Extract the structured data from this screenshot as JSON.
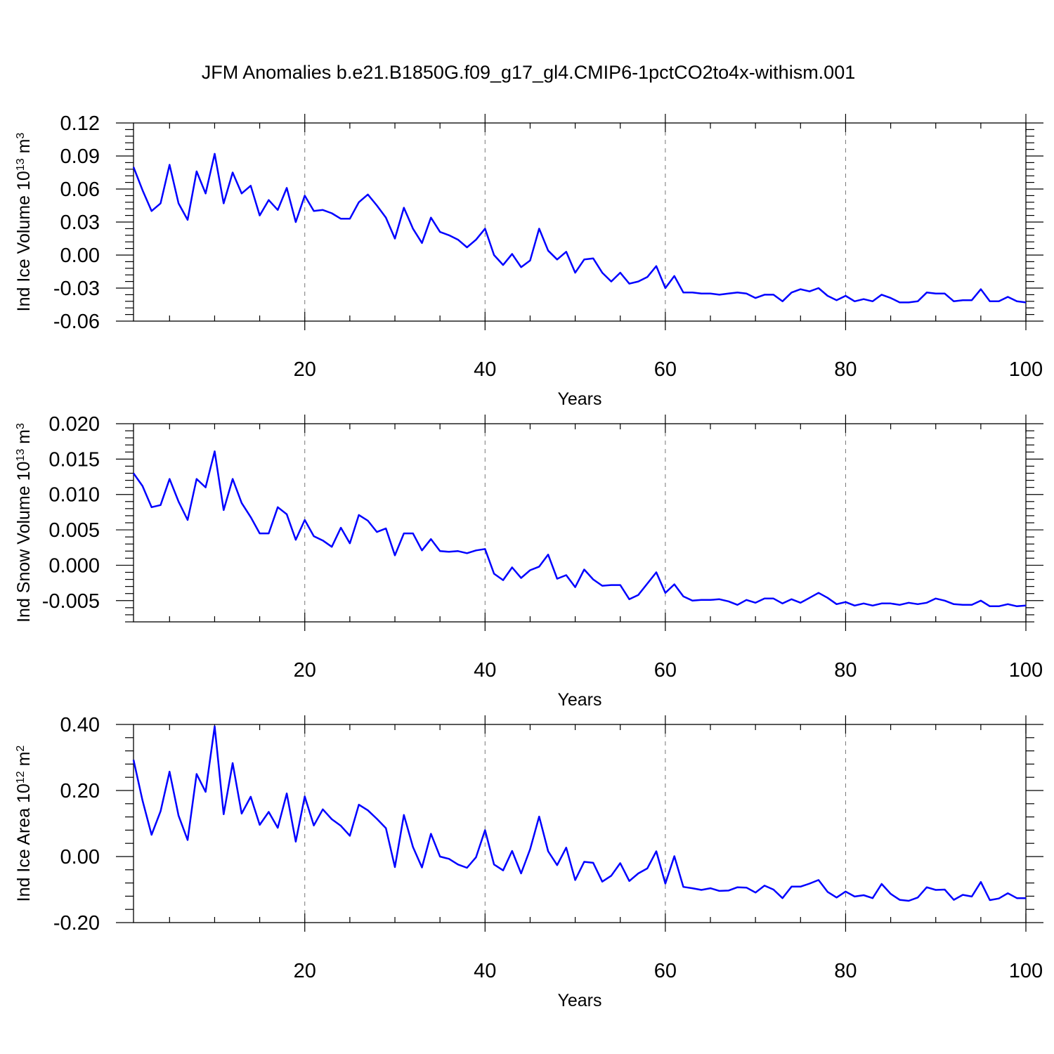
{
  "title": "JFM Anomalies b.e21.B1850G.f09_g17_gl4.CMIP6-1pctCO2to4x-withism.001",
  "line_color": "#0000ff",
  "chart_data": [
    {
      "type": "line",
      "name": "ice-volume",
      "ylabel": "Ind Ice Volume 10",
      "ylabel_exp": "13",
      "ylabel_unit": " m",
      "ylabel_unit_exp": "3",
      "xlabel": "Years",
      "xlim": [
        1,
        100
      ],
      "ylim": [
        -0.06,
        0.12
      ],
      "yticks": [
        -0.06,
        -0.03,
        0.0,
        0.03,
        0.06,
        0.09,
        0.12
      ],
      "ytick_labels": [
        "-0.06",
        "-0.03",
        "0.00",
        "0.03",
        "0.06",
        "0.09",
        "0.12"
      ],
      "xticks": [
        20,
        40,
        60,
        80,
        100
      ],
      "xtick_labels": [
        "20",
        "40",
        "60",
        "80",
        "100"
      ],
      "values": [
        0.08,
        0.059,
        0.04,
        0.047,
        0.082,
        0.047,
        0.032,
        0.076,
        0.056,
        0.092,
        0.047,
        0.075,
        0.056,
        0.063,
        0.036,
        0.05,
        0.041,
        0.061,
        0.03,
        0.054,
        0.04,
        0.041,
        0.038,
        0.033,
        0.033,
        0.048,
        0.055,
        0.045,
        0.034,
        0.015,
        0.043,
        0.024,
        0.011,
        0.034,
        0.021,
        0.018,
        0.014,
        0.007,
        0.014,
        0.024,
        0.0,
        -0.009,
        0.001,
        -0.011,
        -0.005,
        0.024,
        0.004,
        -0.004,
        0.003,
        -0.016,
        -0.004,
        -0.003,
        -0.016,
        -0.024,
        -0.016,
        -0.026,
        -0.024,
        -0.02,
        -0.01,
        -0.03,
        -0.019,
        -0.034,
        -0.034,
        -0.035,
        -0.035,
        -0.036,
        -0.035,
        -0.034,
        -0.035,
        -0.039,
        -0.036,
        -0.036,
        -0.042,
        -0.034,
        -0.031,
        -0.033,
        -0.03,
        -0.037,
        -0.041,
        -0.037,
        -0.042,
        -0.04,
        -0.042,
        -0.036,
        -0.039,
        -0.043,
        -0.043,
        -0.042,
        -0.034,
        -0.035,
        -0.035,
        -0.042,
        -0.041,
        -0.041,
        -0.031,
        -0.042,
        -0.042,
        -0.038,
        -0.042,
        -0.043
      ]
    },
    {
      "type": "line",
      "name": "snow-volume",
      "ylabel": "Ind Snow Volume 10",
      "ylabel_exp": "13",
      "ylabel_unit": " m",
      "ylabel_unit_exp": "3",
      "xlabel": "Years",
      "xlim": [
        1,
        100
      ],
      "ylim": [
        -0.008,
        0.02
      ],
      "yticks": [
        -0.005,
        0.0,
        0.005,
        0.01,
        0.015,
        0.02
      ],
      "ytick_labels": [
        "-0.005",
        "0.000",
        "0.005",
        "0.010",
        "0.015",
        "0.020"
      ],
      "xticks": [
        20,
        40,
        60,
        80,
        100
      ],
      "xtick_labels": [
        "20",
        "40",
        "60",
        "80",
        "100"
      ],
      "values": [
        0.013,
        0.0112,
        0.0082,
        0.0085,
        0.0122,
        0.009,
        0.0064,
        0.0122,
        0.011,
        0.0161,
        0.0078,
        0.0122,
        0.0088,
        0.0068,
        0.0045,
        0.0045,
        0.0082,
        0.0072,
        0.0036,
        0.0064,
        0.0041,
        0.0035,
        0.0026,
        0.0053,
        0.0031,
        0.0071,
        0.0063,
        0.0047,
        0.0052,
        0.0014,
        0.0045,
        0.0045,
        0.0021,
        0.0037,
        0.002,
        0.0019,
        0.002,
        0.0017,
        0.0021,
        0.0023,
        -0.0012,
        -0.0021,
        -0.0003,
        -0.0018,
        -0.0007,
        -0.0002,
        0.0015,
        -0.0019,
        -0.0014,
        -0.0031,
        -0.0006,
        -0.002,
        -0.0029,
        -0.0028,
        -0.0028,
        -0.0048,
        -0.0042,
        -0.0026,
        -0.001,
        -0.0039,
        -0.0027,
        -0.0044,
        -0.005,
        -0.0049,
        -0.0049,
        -0.0048,
        -0.0051,
        -0.0056,
        -0.0049,
        -0.0053,
        -0.0047,
        -0.0047,
        -0.0054,
        -0.0048,
        -0.0053,
        -0.0046,
        -0.0039,
        -0.0046,
        -0.0055,
        -0.0052,
        -0.0057,
        -0.0054,
        -0.0057,
        -0.0054,
        -0.0054,
        -0.0056,
        -0.0053,
        -0.0055,
        -0.0053,
        -0.0047,
        -0.005,
        -0.0055,
        -0.0056,
        -0.0056,
        -0.005,
        -0.0058,
        -0.0058,
        -0.0055,
        -0.0058,
        -0.0057
      ]
    },
    {
      "type": "line",
      "name": "ice-area",
      "ylabel": "Ind Ice Area 10",
      "ylabel_exp": "12",
      "ylabel_unit": " m",
      "ylabel_unit_exp": "2",
      "xlabel": "Years",
      "xlim": [
        1,
        100
      ],
      "ylim": [
        -0.2,
        0.4
      ],
      "yticks": [
        -0.2,
        0.0,
        0.2,
        0.4
      ],
      "ytick_labels": [
        "-0.20",
        "0.00",
        "0.20",
        "0.40"
      ],
      "xticks": [
        20,
        40,
        60,
        80,
        100
      ],
      "xtick_labels": [
        "20",
        "40",
        "60",
        "80",
        "100"
      ],
      "values": [
        0.293,
        0.17,
        0.066,
        0.137,
        0.257,
        0.124,
        0.05,
        0.25,
        0.196,
        0.394,
        0.128,
        0.283,
        0.13,
        0.181,
        0.096,
        0.135,
        0.087,
        0.191,
        0.045,
        0.182,
        0.094,
        0.143,
        0.113,
        0.093,
        0.063,
        0.157,
        0.14,
        0.114,
        0.086,
        -0.032,
        0.126,
        0.029,
        -0.033,
        0.069,
        0.0,
        -0.007,
        -0.024,
        -0.034,
        -0.002,
        0.08,
        -0.024,
        -0.042,
        0.017,
        -0.051,
        0.022,
        0.121,
        0.016,
        -0.026,
        0.027,
        -0.071,
        -0.016,
        -0.019,
        -0.076,
        -0.058,
        -0.02,
        -0.074,
        -0.051,
        -0.036,
        0.016,
        -0.082,
        0.001,
        -0.092,
        -0.096,
        -0.101,
        -0.096,
        -0.104,
        -0.103,
        -0.093,
        -0.094,
        -0.109,
        -0.088,
        -0.1,
        -0.126,
        -0.091,
        -0.091,
        -0.082,
        -0.071,
        -0.107,
        -0.124,
        -0.106,
        -0.121,
        -0.117,
        -0.126,
        -0.083,
        -0.113,
        -0.131,
        -0.134,
        -0.124,
        -0.093,
        -0.101,
        -0.1,
        -0.131,
        -0.116,
        -0.121,
        -0.077,
        -0.132,
        -0.127,
        -0.111,
        -0.126,
        -0.126
      ]
    }
  ]
}
